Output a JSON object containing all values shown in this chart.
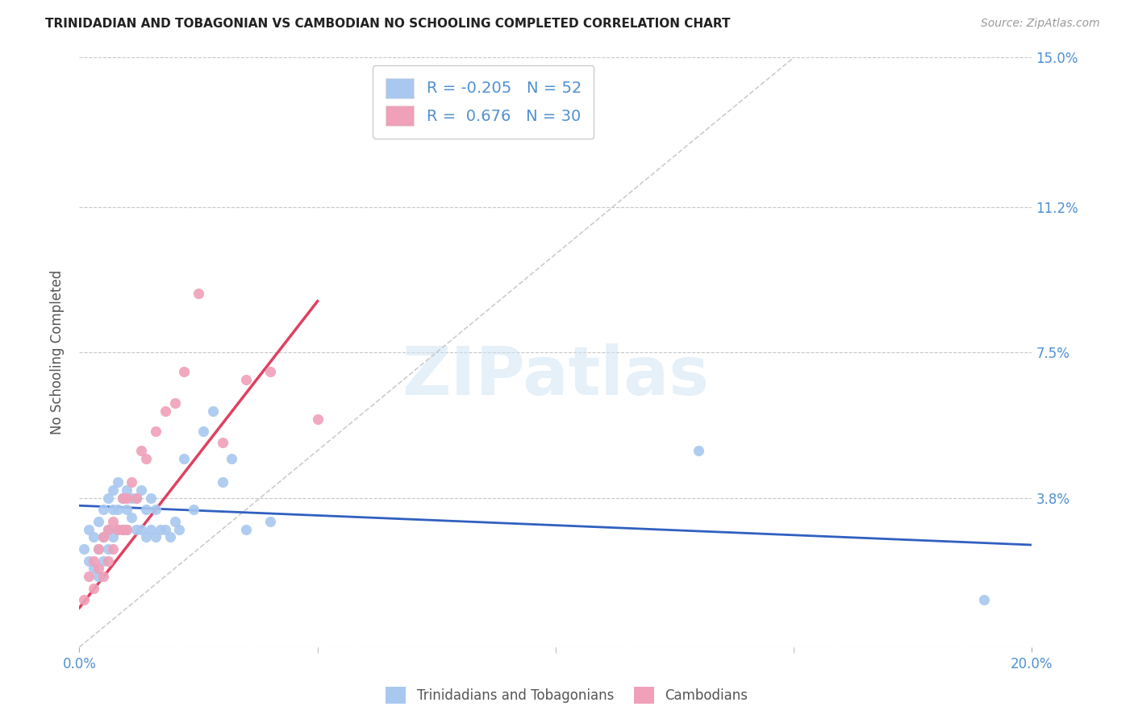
{
  "title": "TRINIDADIAN AND TOBAGONIAN VS CAMBODIAN NO SCHOOLING COMPLETED CORRELATION CHART",
  "source": "Source: ZipAtlas.com",
  "ylabel": "No Schooling Completed",
  "xlim": [
    0.0,
    0.2
  ],
  "ylim": [
    0.0,
    0.15
  ],
  "xticks": [
    0.0,
    0.05,
    0.1,
    0.15,
    0.2
  ],
  "xtick_labels": [
    "0.0%",
    "",
    "",
    "",
    "20.0%"
  ],
  "ytick_positions": [
    0.0,
    0.038,
    0.075,
    0.112,
    0.15
  ],
  "ytick_labels": [
    "",
    "3.8%",
    "7.5%",
    "11.2%",
    "15.0%"
  ],
  "background_color": "#ffffff",
  "grid_color": "#c8c8c8",
  "watermark_text": "ZIPatlas",
  "legend_R1": "-0.205",
  "legend_N1": "52",
  "legend_R2": "0.676",
  "legend_N2": "30",
  "blue_color": "#a8c8f0",
  "pink_color": "#f0a0b8",
  "blue_line_color": "#3060c0",
  "pink_line_color": "#e04060",
  "diagonal_line_color": "#c0c0c0",
  "title_color": "#222222",
  "axis_label_color": "#5090d0",
  "trinidadian_x": [
    0.001,
    0.002,
    0.002,
    0.003,
    0.003,
    0.004,
    0.004,
    0.004,
    0.005,
    0.005,
    0.005,
    0.006,
    0.006,
    0.006,
    0.007,
    0.007,
    0.007,
    0.008,
    0.008,
    0.008,
    0.009,
    0.009,
    0.01,
    0.01,
    0.01,
    0.011,
    0.011,
    0.012,
    0.012,
    0.013,
    0.013,
    0.014,
    0.014,
    0.015,
    0.015,
    0.016,
    0.016,
    0.017,
    0.018,
    0.019,
    0.02,
    0.021,
    0.022,
    0.024,
    0.026,
    0.028,
    0.03,
    0.032,
    0.035,
    0.04,
    0.13,
    0.19
  ],
  "trinidadian_y": [
    0.025,
    0.022,
    0.03,
    0.02,
    0.028,
    0.018,
    0.025,
    0.032,
    0.022,
    0.028,
    0.035,
    0.025,
    0.03,
    0.038,
    0.028,
    0.035,
    0.04,
    0.03,
    0.035,
    0.042,
    0.03,
    0.038,
    0.03,
    0.035,
    0.04,
    0.033,
    0.038,
    0.03,
    0.038,
    0.03,
    0.04,
    0.028,
    0.035,
    0.03,
    0.038,
    0.028,
    0.035,
    0.03,
    0.03,
    0.028,
    0.032,
    0.03,
    0.048,
    0.035,
    0.055,
    0.06,
    0.042,
    0.048,
    0.03,
    0.032,
    0.05,
    0.012
  ],
  "cambodian_x": [
    0.001,
    0.002,
    0.003,
    0.003,
    0.004,
    0.004,
    0.005,
    0.005,
    0.006,
    0.006,
    0.007,
    0.007,
    0.008,
    0.009,
    0.009,
    0.01,
    0.01,
    0.011,
    0.012,
    0.013,
    0.014,
    0.016,
    0.018,
    0.02,
    0.022,
    0.025,
    0.03,
    0.035,
    0.04,
    0.05
  ],
  "cambodian_y": [
    0.012,
    0.018,
    0.015,
    0.022,
    0.02,
    0.025,
    0.018,
    0.028,
    0.022,
    0.03,
    0.025,
    0.032,
    0.03,
    0.03,
    0.038,
    0.03,
    0.038,
    0.042,
    0.038,
    0.05,
    0.048,
    0.055,
    0.06,
    0.062,
    0.07,
    0.09,
    0.052,
    0.068,
    0.07,
    0.058
  ],
  "blue_trend_x": [
    0.0,
    0.2
  ],
  "blue_trend_y": [
    0.036,
    0.026
  ],
  "pink_trend_x": [
    0.0,
    0.05
  ],
  "pink_trend_y": [
    0.01,
    0.088
  ]
}
